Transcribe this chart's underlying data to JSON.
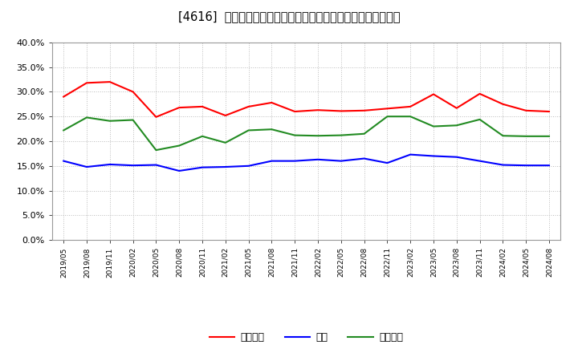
{
  "title": "[4616]  売上債権、在庫、買入債務の総資産に対する比率の推移",
  "x_labels": [
    "2019/05",
    "2019/08",
    "2019/11",
    "2020/02",
    "2020/05",
    "2020/08",
    "2020/11",
    "2021/02",
    "2021/05",
    "2021/08",
    "2021/11",
    "2022/02",
    "2022/05",
    "2022/08",
    "2022/11",
    "2023/02",
    "2023/05",
    "2023/08",
    "2023/11",
    "2024/02",
    "2024/05",
    "2024/08"
  ],
  "urikake": [
    0.29,
    0.318,
    0.32,
    0.3,
    0.249,
    0.268,
    0.27,
    0.252,
    0.27,
    0.278,
    0.26,
    0.263,
    0.261,
    0.262,
    0.266,
    0.27,
    0.295,
    0.267,
    0.296,
    0.275,
    0.262,
    0.26
  ],
  "zaiko": [
    0.16,
    0.148,
    0.153,
    0.151,
    0.152,
    0.14,
    0.147,
    0.148,
    0.15,
    0.16,
    0.16,
    0.163,
    0.16,
    0.165,
    0.156,
    0.173,
    0.17,
    0.168,
    0.16,
    0.152,
    0.151,
    0.151
  ],
  "kaiire": [
    0.222,
    0.248,
    0.241,
    0.243,
    0.182,
    0.191,
    0.21,
    0.197,
    0.222,
    0.224,
    0.212,
    0.211,
    0.212,
    0.215,
    0.25,
    0.25,
    0.23,
    0.232,
    0.244,
    0.211,
    0.21,
    0.21
  ],
  "urikake_color": "#ff0000",
  "zaiko_color": "#0000ff",
  "kaiire_color": "#228B22",
  "ylim": [
    0.0,
    0.4
  ],
  "yticks": [
    0.0,
    0.05,
    0.1,
    0.15,
    0.2,
    0.25,
    0.3,
    0.35,
    0.4
  ],
  "legend_labels": [
    "売上債権",
    "在庫",
    "買入債務"
  ],
  "background_color": "#ffffff",
  "grid_color": "#bbbbbb",
  "title_fontsize": 10.5
}
